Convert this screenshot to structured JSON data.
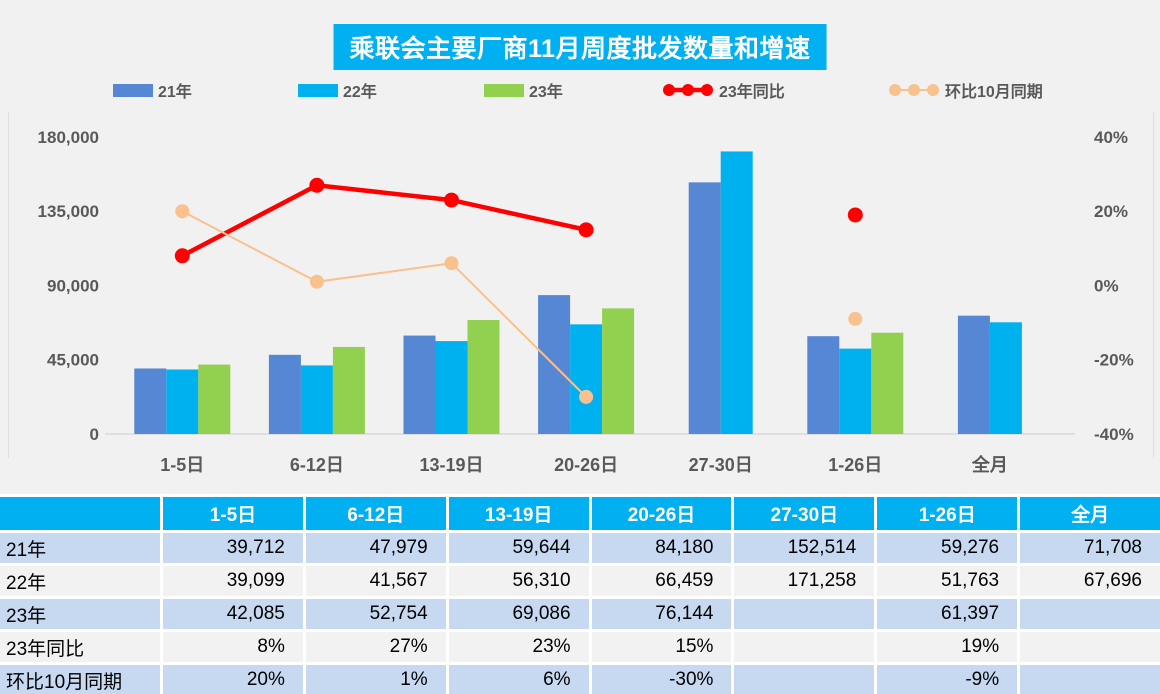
{
  "title": "乘联会主要厂商11月周度批发数量和增速",
  "colors": {
    "accent_cyan": "#00B0F0",
    "bar_blue": "#5587D5",
    "bar_cyan": "#00B1F0",
    "bar_green": "#92D050",
    "line_red": "#FF0000",
    "line_peach": "#F9C18E",
    "row_blue": "#C6D9F1",
    "row_gray": "#F2F2F2",
    "axis_text": "#595959",
    "axis_line": "#D9D9D9"
  },
  "chart_data": {
    "type": "bar+line combo",
    "title": "乘联会主要厂商11月周度批发数量和增速",
    "categories": [
      "1-5日",
      "6-12日",
      "13-19日",
      "20-26日",
      "27-30日",
      "1-26日",
      "全月"
    ],
    "series": [
      {
        "name": "21年",
        "type": "bar",
        "color": "#5587D5",
        "values": [
          39712,
          47979,
          59644,
          84180,
          152514,
          59276,
          71708
        ]
      },
      {
        "name": "22年",
        "type": "bar",
        "color": "#00B1F0",
        "values": [
          39099,
          41567,
          56310,
          66459,
          171258,
          51763,
          67696
        ]
      },
      {
        "name": "23年",
        "type": "bar",
        "color": "#92D050",
        "values": [
          42085,
          52754,
          69086,
          76144,
          null,
          61397,
          null
        ]
      },
      {
        "name": "23年同比",
        "type": "line",
        "color": "#FF0000",
        "stroke_width": 4.5,
        "marker_r": 7.5,
        "values": [
          8,
          27,
          23,
          15,
          null,
          19,
          null
        ],
        "unit": "%"
      },
      {
        "name": "环比10月同期",
        "type": "line",
        "color": "#F9C18E",
        "stroke_width": 2,
        "marker_r": 7,
        "values": [
          20,
          1,
          6,
          -30,
          null,
          -9,
          null
        ],
        "unit": "%"
      }
    ],
    "left_axis": {
      "min": 0,
      "max": 180000,
      "ticks": [
        {
          "label": "180,000",
          "value": 180000
        },
        {
          "label": "135,000",
          "value": 135000
        },
        {
          "label": "90,000",
          "value": 90000
        },
        {
          "label": "45,000",
          "value": 45000
        },
        {
          "label": "0",
          "value": 0
        }
      ]
    },
    "right_axis": {
      "min": -40,
      "max": 40,
      "ticks": [
        {
          "label": "40%",
          "value": 40
        },
        {
          "label": "20%",
          "value": 20
        },
        {
          "label": "0%",
          "value": 0
        },
        {
          "label": "-20%",
          "value": -20
        },
        {
          "label": "-40%",
          "value": -40
        }
      ]
    },
    "grid": "off",
    "legend_position": "top"
  },
  "table": {
    "header": [
      "",
      "1-5日",
      "6-12日",
      "13-19日",
      "20-26日",
      "27-30日",
      "1-26日",
      "全月"
    ],
    "rows": [
      {
        "label": "21年",
        "cells": [
          "39,712",
          "47,979",
          "59,644",
          "84,180",
          "152,514",
          "59,276",
          "71,708"
        ]
      },
      {
        "label": "22年",
        "cells": [
          "39,099",
          "41,567",
          "56,310",
          "66,459",
          "171,258",
          "51,763",
          "67,696"
        ]
      },
      {
        "label": "23年",
        "cells": [
          "42,085",
          "52,754",
          "69,086",
          "76,144",
          "",
          "61,397",
          ""
        ]
      },
      {
        "label": "23年同比",
        "cells": [
          "8%",
          "27%",
          "23%",
          "15%",
          "",
          "19%",
          ""
        ]
      },
      {
        "label": "环比10月同期",
        "cells": [
          "20%",
          "1%",
          "6%",
          "-30%",
          "",
          "-9%",
          ""
        ]
      }
    ]
  }
}
